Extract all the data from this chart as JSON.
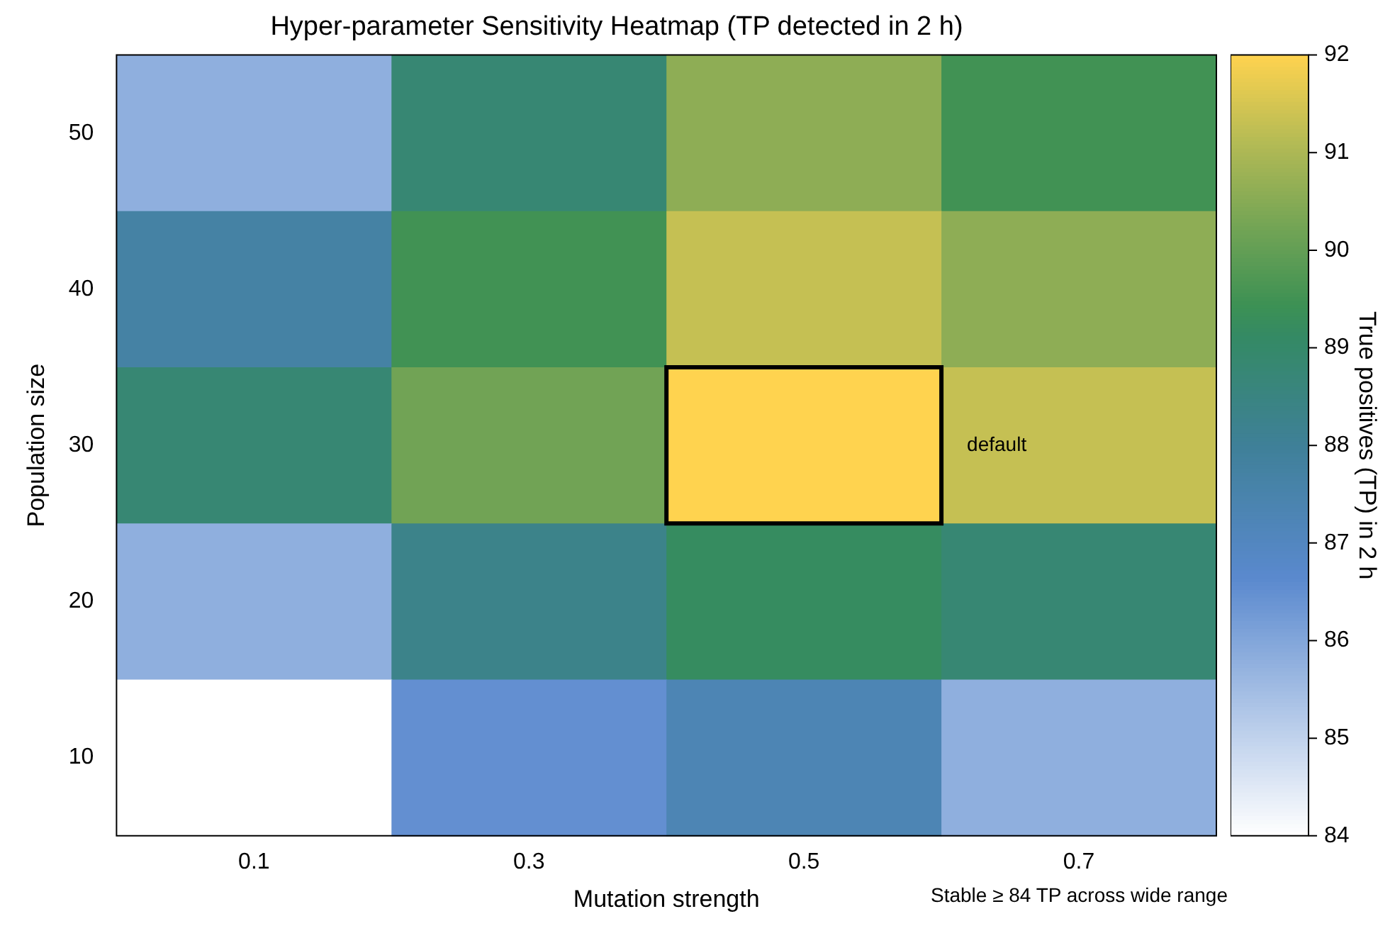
{
  "chart_data": {
    "type": "heatmap",
    "title": "Hyper-parameter Sensitivity Heatmap (TP detected in 2 h)",
    "xlabel": "Mutation strength",
    "ylabel": "Population size",
    "clabel": "True positives (TP) in 2 h",
    "categories": [
      "0.1",
      "0.3",
      "0.5",
      "0.7"
    ],
    "y_categories": [
      "50",
      "40",
      "30",
      "20",
      "10"
    ],
    "cells": [
      [
        85.8,
        88.8,
        90.6,
        89.5
      ],
      [
        87.7,
        89.5,
        91.3,
        90.6
      ],
      [
        88.8,
        90.2,
        92,
        91.3
      ],
      [
        85.8,
        88.3,
        89.2,
        88.8
      ],
      [
        84,
        86.5,
        87.3,
        85.8
      ]
    ],
    "clim": [
      84,
      92
    ],
    "cticks": [
      84,
      85,
      86,
      87,
      88,
      89,
      90,
      91,
      92
    ],
    "annotations": [
      "default",
      "Stable ≥ 84 TP across wide range"
    ]
  }
}
